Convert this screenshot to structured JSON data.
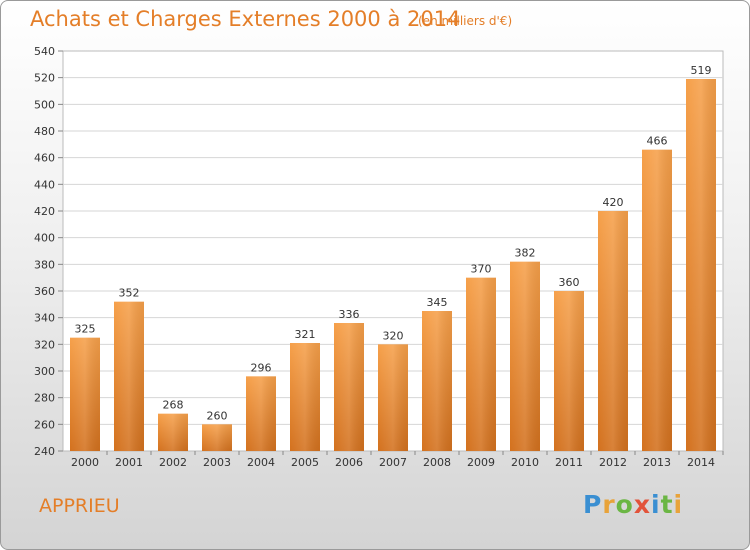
{
  "header": {
    "title": "Achats et Charges Externes 2000 à 2014",
    "unit_note": "(en milliers d'€)"
  },
  "footer": {
    "commune": "APPRIEU",
    "logo_letters": [
      {
        "ch": "P",
        "color": "#3a8fd2"
      },
      {
        "ch": "r",
        "color": "#e8a33a"
      },
      {
        "ch": "o",
        "color": "#6bb644"
      },
      {
        "ch": "x",
        "color": "#e2533a"
      },
      {
        "ch": "i",
        "color": "#3a8fd2"
      },
      {
        "ch": "t",
        "color": "#6bb644"
      },
      {
        "ch": "i",
        "color": "#e8a33a"
      }
    ]
  },
  "chart_data": {
    "type": "bar",
    "categories": [
      "2000",
      "2001",
      "2002",
      "2003",
      "2004",
      "2005",
      "2006",
      "2007",
      "2008",
      "2009",
      "2010",
      "2011",
      "2012",
      "2013",
      "2014"
    ],
    "values": [
      325,
      352,
      268,
      260,
      296,
      321,
      336,
      320,
      345,
      370,
      382,
      360,
      420,
      466,
      519
    ],
    "ylim": [
      240,
      540
    ],
    "yticks": [
      240,
      260,
      280,
      300,
      320,
      340,
      360,
      380,
      400,
      420,
      440,
      460,
      480,
      500,
      520,
      540
    ],
    "grid": true,
    "bar_color": "#f0963c",
    "bar_color_dark": "#d3711e"
  }
}
